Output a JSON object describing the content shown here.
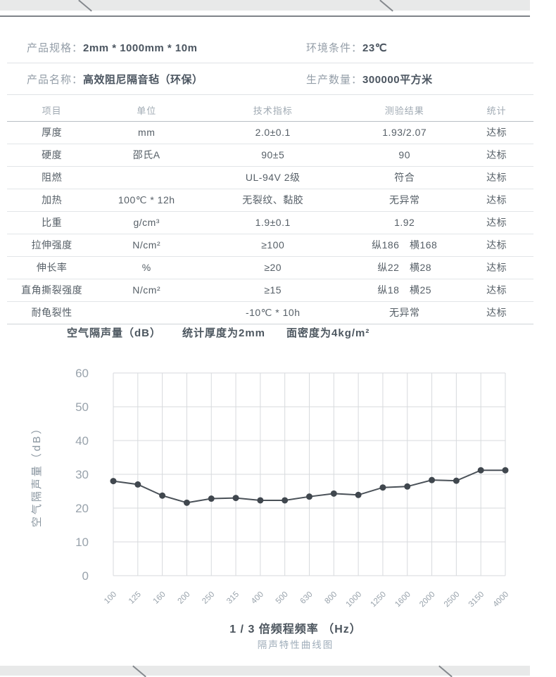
{
  "page": {
    "info": {
      "spec_label": "产品规格：",
      "spec_value": "2mm * 1000mm * 10m",
      "env_label": "环境条件：",
      "env_value": "23℃",
      "name_label": "产品名称：",
      "name_value": "高效阻尼隔音毡（环保）",
      "qty_label": "生产数量：",
      "qty_value": "300000平方米"
    },
    "table": {
      "headers": [
        "项目",
        "单位",
        "技术指标",
        "测验结果",
        "统计"
      ],
      "rows": [
        [
          "厚度",
          "mm",
          "2.0±0.1",
          "1.93/2.07",
          "达标"
        ],
        [
          "硬度",
          "邵氏A",
          "90±5",
          "90",
          "达标"
        ],
        [
          "阻燃",
          "",
          "UL-94V 2级",
          "符合",
          "达标"
        ],
        [
          "加热",
          "100℃ * 12h",
          "无裂纹、黏胶",
          "无异常",
          "达标"
        ],
        [
          "比重",
          "g/cm³",
          "1.9±0.1",
          "1.92",
          "达标"
        ],
        [
          "拉伸强度",
          "N/cm²",
          "≥100",
          "纵186　横168",
          "达标"
        ],
        [
          "伸长率",
          "%",
          "≥20",
          "纵22　横28",
          "达标"
        ],
        [
          "直角撕裂强度",
          "N/cm²",
          "≥15",
          "纵18　横25",
          "达标"
        ],
        [
          "耐龟裂性",
          "",
          "-10℃ * 10h",
          "无异常",
          "达标"
        ]
      ]
    },
    "chart_heading": {
      "part1": "空气隔声量（dB）",
      "part2": "统计厚度为2mm",
      "part3": "面密度为4kg/m²"
    },
    "footer": {
      "xaxis_title": "1 / 3 倍频程频率 （Hz）",
      "caption": "隔声特性曲线图"
    }
  },
  "chart_data": {
    "type": "line",
    "title": "隔声特性曲线图",
    "xlabel": "1 / 3 倍频程频率（Hz）",
    "ylabel": "空气隔声量（dB）",
    "categories": [
      "100",
      "125",
      "160",
      "200",
      "250",
      "315",
      "400",
      "500",
      "630",
      "800",
      "1000",
      "1250",
      "1600",
      "2000",
      "2500",
      "3150",
      "4000"
    ],
    "values": [
      28,
      27,
      23.7,
      21.6,
      22.8,
      23,
      22.3,
      22.3,
      23.4,
      24.3,
      23.9,
      26.1,
      26.4,
      28.3,
      28.1,
      31.2,
      31.2
    ],
    "ylim": [
      0,
      60
    ],
    "yticks": [
      0,
      10,
      20,
      30,
      40,
      50,
      60
    ],
    "grid": true,
    "legend": "none",
    "line_color": "#4a5158",
    "marker_color": "#40474e",
    "grid_color": "#d7dadd",
    "tick_color": "#99a3ac",
    "axis_title_color": "#8a96a0"
  },
  "colors": {
    "band": "#e8e9e9",
    "rule": "#7f8489",
    "label_gray": "#949ea8",
    "value_dark": "#4b5560"
  }
}
